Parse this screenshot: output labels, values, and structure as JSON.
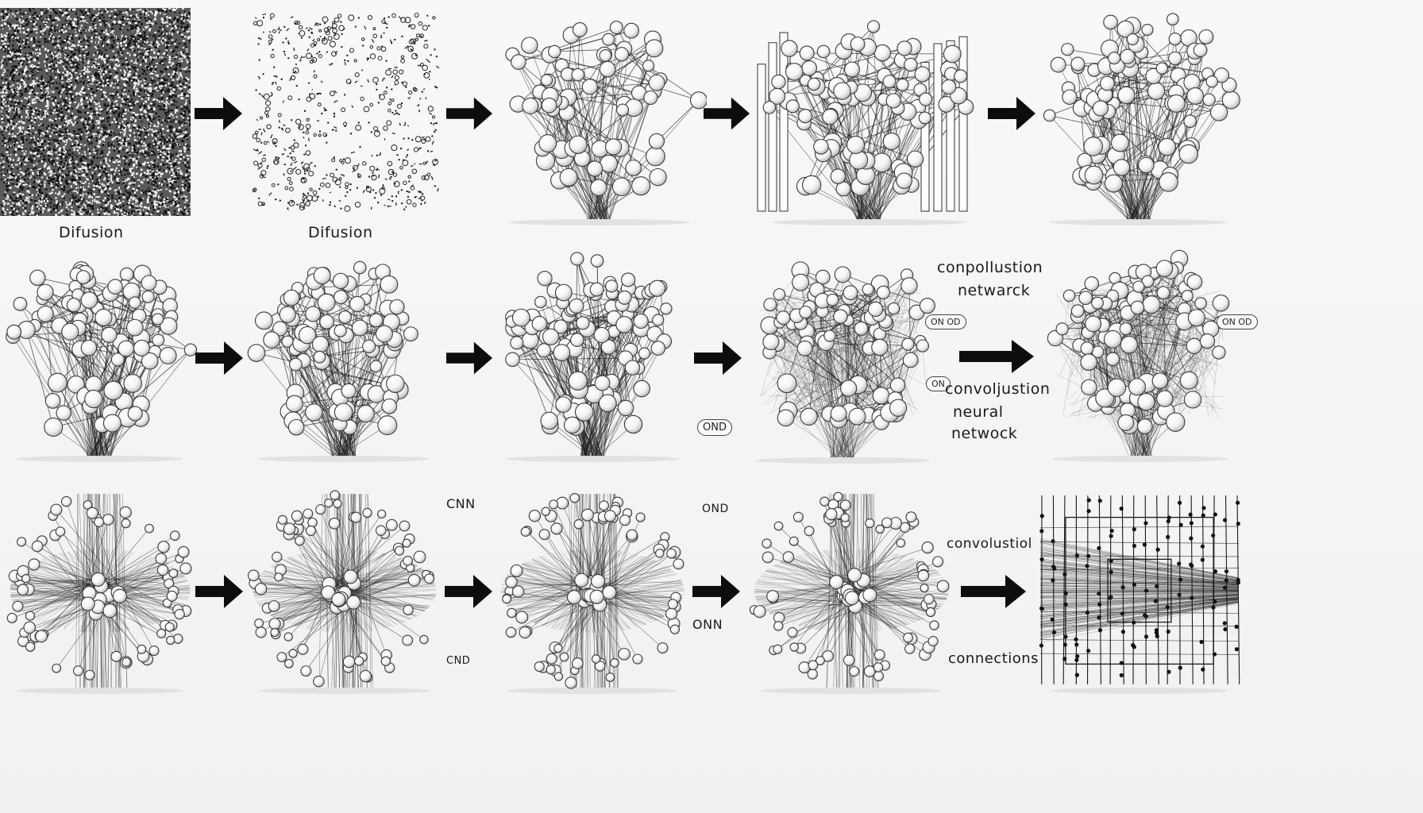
{
  "rows": [
    {
      "panels": [
        {
          "id": "r1p1",
          "style": "noise-dense"
        },
        {
          "id": "r1p2",
          "style": "noise-sparse"
        },
        {
          "id": "r1p3",
          "style": "tree-sparse"
        },
        {
          "id": "r1p4",
          "style": "tree-bars"
        },
        {
          "id": "r1p5",
          "style": "tree-medium"
        }
      ]
    },
    {
      "panels": [
        {
          "id": "r2p1",
          "style": "tree-medium"
        },
        {
          "id": "r2p2",
          "style": "tree-medium"
        },
        {
          "id": "r2p3",
          "style": "tree-dense"
        },
        {
          "id": "r2p4",
          "style": "tree-webbed"
        },
        {
          "id": "r2p5",
          "style": "tree-webbed"
        }
      ]
    },
    {
      "panels": [
        {
          "id": "r3p1",
          "style": "burst"
        },
        {
          "id": "r3p2",
          "style": "burst"
        },
        {
          "id": "r3p3",
          "style": "burst"
        },
        {
          "id": "r3p4",
          "style": "burst"
        },
        {
          "id": "r3p5",
          "style": "grid"
        }
      ]
    }
  ],
  "labels": {
    "diffusion_1": "Difusion",
    "diffusion_2": "Difusion",
    "conpollustion_network_line1": "conpollustion",
    "conpollustion_network_line2": "netwarck",
    "convoljustion_line1": "convoljustion",
    "convoljustion_line2": "neural",
    "convoljustion_line3": "netwock",
    "cnn_top": "CNN",
    "ond_top": "OND",
    "onn_bottom": "ONN",
    "cnd_bottom": "CND",
    "convolusitiol": "convolustiol",
    "connections": "connections",
    "pill_ond_left": "OND",
    "pill_on_right_1": "ON OD",
    "pill_on_right_2": "ON",
    "pill_on_far": "ON OD"
  },
  "colors": {
    "ink": "#1a1a1a",
    "node_fill": "#f4f4f4",
    "node_shade": "#bdbdbd",
    "arrow": "#0d0d0d"
  }
}
